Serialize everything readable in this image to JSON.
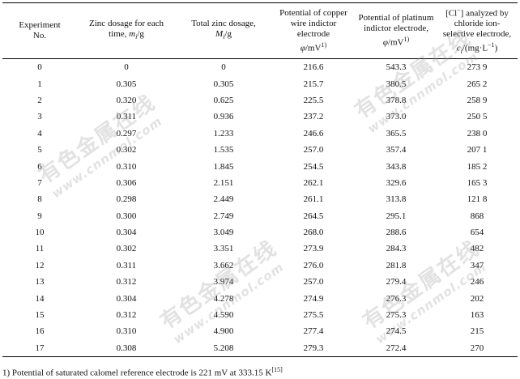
{
  "table": {
    "headers": [
      {
        "lines": [
          "Experiment",
          "No."
        ]
      },
      {
        "lines": [
          "Zinc dosage for each",
          "time, m_i/g"
        ]
      },
      {
        "lines": [
          "Total zinc dosage,",
          "M_i/g"
        ]
      },
      {
        "lines": [
          "Potential of copper",
          "wire indictor",
          "electrode",
          "φ/mV^1)"
        ]
      },
      {
        "lines": [
          "Potential of platinum",
          "indictor electrode,",
          "φ/mV^1)"
        ]
      },
      {
        "lines": [
          "[Cl⁻] analyzed by",
          "chloride ion-",
          "selective electrode,",
          "c_i/(mg·L⁻¹)"
        ]
      }
    ],
    "rows": [
      [
        "0",
        "0",
        "0",
        "216.6",
        "543.3",
        "273 9"
      ],
      [
        "1",
        "0.305",
        "0.305",
        "215.7",
        "380.5",
        "265 2"
      ],
      [
        "2",
        "0.320",
        "0.625",
        "225.5",
        "378.8",
        "258 9"
      ],
      [
        "3",
        "0.311",
        "0.936",
        "237.2",
        "373.0",
        "250 5"
      ],
      [
        "4",
        "0.297",
        "1.233",
        "246.6",
        "365.5",
        "238 0"
      ],
      [
        "5",
        "0.302",
        "1.535",
        "257.0",
        "357.4",
        "207 1"
      ],
      [
        "6",
        "0.310",
        "1.845",
        "254.5",
        "343.8",
        "185 2"
      ],
      [
        "7",
        "0.306",
        "2.151",
        "262.1",
        "329.6",
        "165 3"
      ],
      [
        "8",
        "0.298",
        "2.449",
        "261.1",
        "313.8",
        "121 8"
      ],
      [
        "9",
        "0.300",
        "2.749",
        "264.5",
        "295.1",
        "868"
      ],
      [
        "10",
        "0.304",
        "3.049",
        "268.0",
        "288.6",
        "654"
      ],
      [
        "11",
        "0.302",
        "3.351",
        "273.9",
        "284.3",
        "482"
      ],
      [
        "12",
        "0.311",
        "3.662",
        "276.0",
        "281.8",
        "347"
      ],
      [
        "13",
        "0.312",
        "3.974",
        "257.0",
        "279.4",
        "246"
      ],
      [
        "14",
        "0.304",
        "4.278",
        "274.9",
        "276.3",
        "202"
      ],
      [
        "15",
        "0.312",
        "4.590",
        "275.5",
        "275.3",
        "163"
      ],
      [
        "16",
        "0.310",
        "4.900",
        "277.4",
        "274.5",
        "215"
      ],
      [
        "17",
        "0.308",
        "5.208",
        "279.3",
        "272.4",
        "270"
      ]
    ]
  },
  "footnote": {
    "text": "1) Potential of saturated calomel reference electrode is 221 mV at 333.15 K",
    "ref": "[15]"
  },
  "watermark": {
    "chars": "有色金属在线",
    "url": "www.cnnmol.com"
  }
}
